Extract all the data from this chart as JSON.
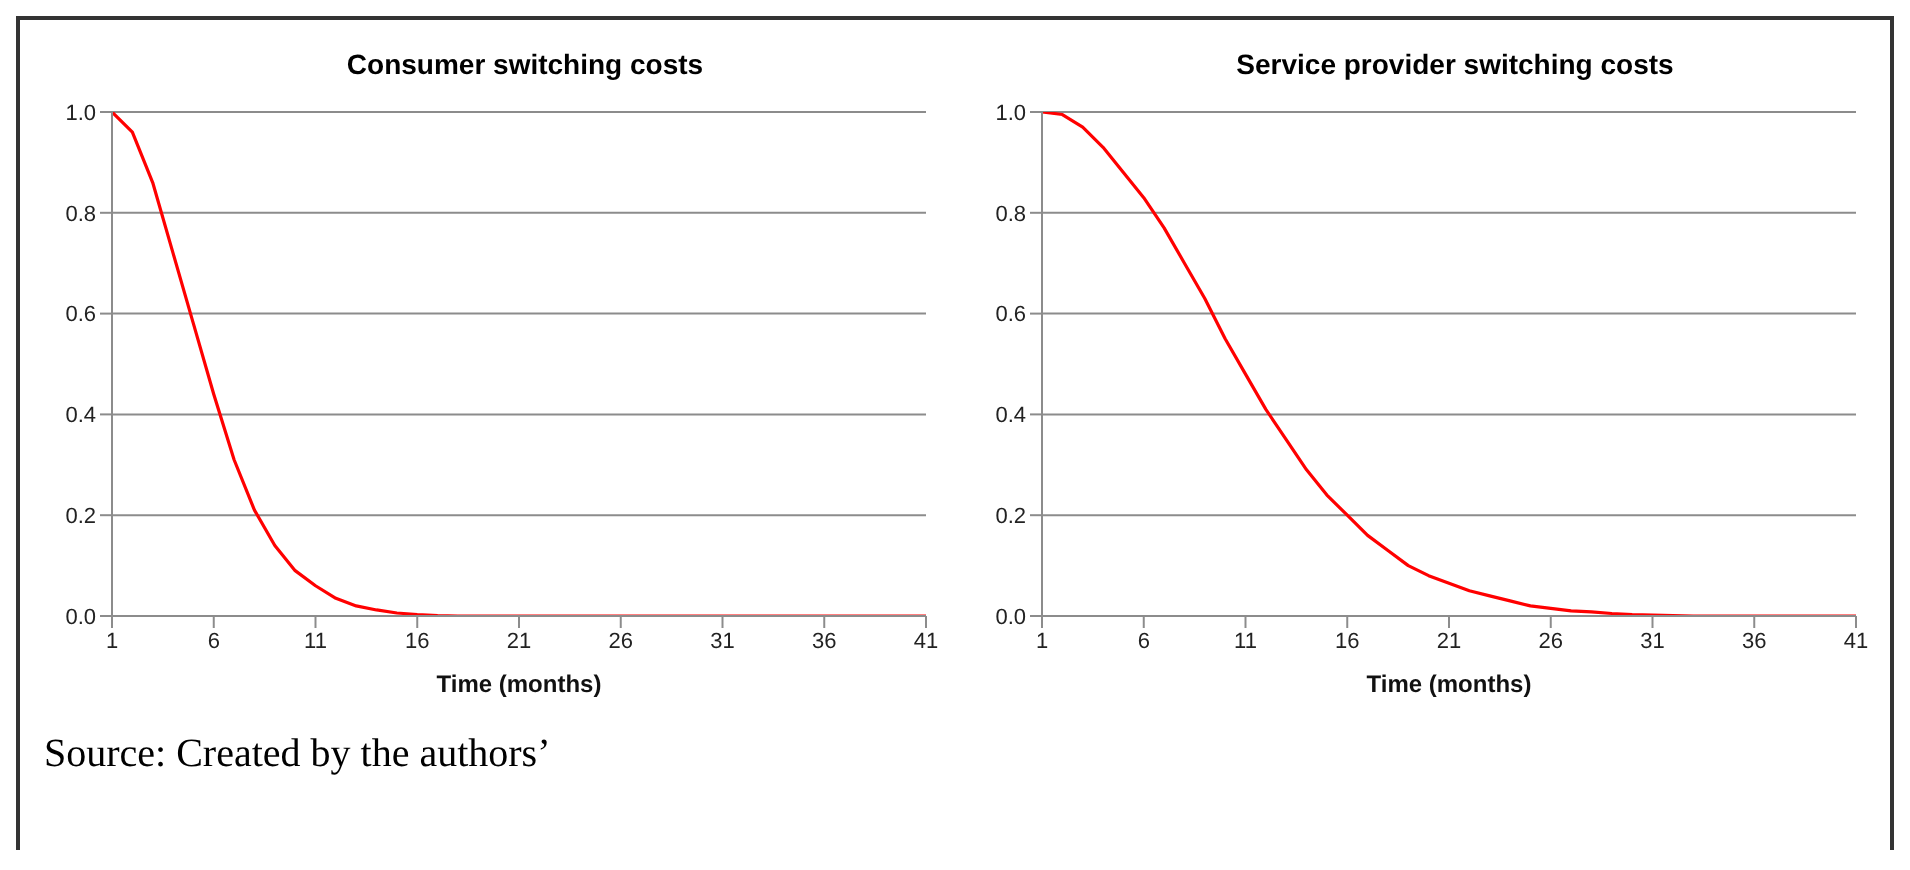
{
  "chart_data": [
    {
      "type": "line",
      "title": "Consumer switching costs",
      "xlabel": "Time (months)",
      "x": [
        1,
        2,
        3,
        4,
        5,
        6,
        7,
        8,
        9,
        10,
        11,
        12,
        13,
        14,
        15,
        16,
        17,
        18,
        19,
        20,
        21,
        22,
        23,
        24,
        25,
        26,
        27,
        28,
        29,
        30,
        31,
        32,
        33,
        34,
        35,
        36,
        37,
        38,
        39,
        40,
        41
      ],
      "series": [
        {
          "color": "#ff0000",
          "values": [
            1.0,
            0.96,
            0.86,
            0.72,
            0.58,
            0.44,
            0.31,
            0.21,
            0.14,
            0.09,
            0.06,
            0.035,
            0.02,
            0.012,
            0.006,
            0.003,
            0.001,
            0,
            0,
            0,
            0,
            0,
            0,
            0,
            0,
            0,
            0,
            0,
            0,
            0,
            0,
            0,
            0,
            0,
            0,
            0,
            0,
            0,
            0,
            0,
            0
          ]
        }
      ],
      "xlim": [
        1,
        41
      ],
      "xticks": [
        1,
        6,
        11,
        16,
        21,
        26,
        31,
        36,
        41
      ],
      "ylim": [
        0,
        1
      ],
      "yticks": [
        {
          "value": 0,
          "label": "0.0"
        },
        {
          "value": 0.2,
          "label": "0.2"
        },
        {
          "value": 0.4,
          "label": "0.4"
        },
        {
          "value": 0.6,
          "label": "0.6"
        },
        {
          "value": 0.8,
          "label": "0.8"
        },
        {
          "value": 1,
          "label": "1.0"
        }
      ],
      "grid": "y",
      "marker": "none",
      "line_style": "solid"
    },
    {
      "type": "line",
      "title": "Service provider switching costs",
      "xlabel": "Time (months)",
      "x": [
        1,
        2,
        3,
        4,
        5,
        6,
        7,
        8,
        9,
        10,
        11,
        12,
        13,
        14,
        15,
        16,
        17,
        18,
        19,
        20,
        21,
        22,
        23,
        24,
        25,
        26,
        27,
        28,
        29,
        30,
        31,
        32,
        33,
        34,
        35,
        36,
        37,
        38,
        39,
        40,
        41
      ],
      "series": [
        {
          "color": "#ff0000",
          "values": [
            1.0,
            0.995,
            0.97,
            0.93,
            0.88,
            0.83,
            0.77,
            0.7,
            0.63,
            0.55,
            0.48,
            0.41,
            0.35,
            0.29,
            0.24,
            0.2,
            0.16,
            0.13,
            0.1,
            0.08,
            0.065,
            0.05,
            0.04,
            0.03,
            0.02,
            0.015,
            0.01,
            0.008,
            0.005,
            0.003,
            0.002,
            0.001,
            0,
            0,
            0,
            0,
            0,
            0,
            0,
            0,
            0
          ]
        }
      ],
      "xlim": [
        1,
        41
      ],
      "xticks": [
        1,
        6,
        11,
        16,
        21,
        26,
        31,
        36,
        41
      ],
      "ylim": [
        0,
        1
      ],
      "yticks": [
        {
          "value": 0,
          "label": "0.0"
        },
        {
          "value": 0.2,
          "label": "0.2"
        },
        {
          "value": 0.4,
          "label": "0.4"
        },
        {
          "value": 0.6,
          "label": "0.6"
        },
        {
          "value": 0.8,
          "label": "0.8"
        },
        {
          "value": 1,
          "label": "1.0"
        }
      ],
      "grid": "y",
      "marker": "none",
      "line_style": "solid",
      "annotations": [
        "Source: Created by the authors’"
      ]
    }
  ]
}
